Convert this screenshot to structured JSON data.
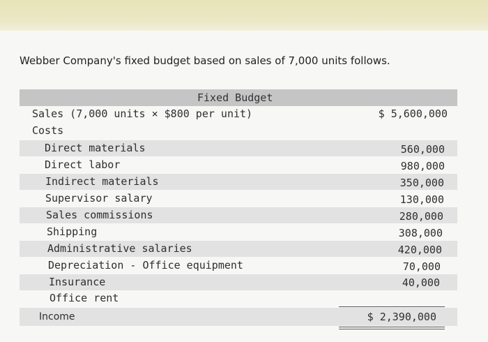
{
  "intro": "Webber Company's fixed budget based on sales of 7,000 units follows.",
  "table": {
    "column_header": "Fixed Budget",
    "sales": {
      "label": "Sales (7,000 units × $800 per unit)",
      "value": "$ 5,600,000"
    },
    "costs_label": "Costs",
    "costs": [
      {
        "label": "Direct materials",
        "value": "560,000"
      },
      {
        "label": "Direct labor",
        "value": "980,000"
      },
      {
        "label": "Indirect materials",
        "value": "350,000"
      },
      {
        "label": "Supervisor salary",
        "value": "130,000"
      },
      {
        "label": "Sales commissions",
        "value": "280,000"
      },
      {
        "label": "Shipping",
        "value": "308,000"
      },
      {
        "label": "Administrative salaries",
        "value": "420,000"
      },
      {
        "label": "Depreciation - Office equipment",
        "value": "70,000"
      },
      {
        "label": "Insurance",
        "value": "40,000"
      },
      {
        "label": "Office rent",
        "value": ""
      }
    ],
    "income": {
      "label": "Income",
      "value": "$ 2,390,000"
    }
  }
}
